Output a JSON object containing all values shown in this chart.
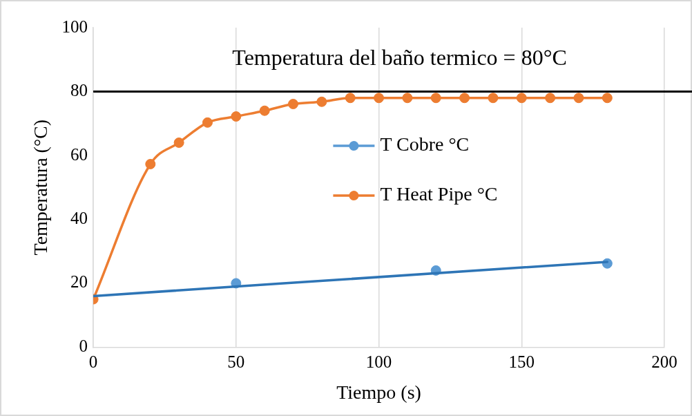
{
  "chart_data": {
    "type": "scatter",
    "xlabel": "Tiempo (s)",
    "ylabel": "Temperatura (°C)",
    "xlim": [
      0,
      200
    ],
    "xticks": [
      0,
      50,
      100,
      150,
      200
    ],
    "ylim": [
      0,
      100
    ],
    "yticks": [
      0,
      20,
      40,
      60,
      80,
      100
    ],
    "grid": "x",
    "legend": "center",
    "marker": "circle",
    "ref_lines": [
      {
        "axis": "y",
        "value": 80,
        "label": "Temperatura del baño termico = 80°C",
        "color": "#000000"
      }
    ],
    "series": [
      {
        "name": "T Cobre °C",
        "color": "#5b9bd5",
        "x": [
          50,
          120,
          180
        ],
        "values": [
          20,
          24,
          26.2
        ]
      },
      {
        "name": "T Heat Pipe °C",
        "type": "line",
        "color": "#ed7d31",
        "x": [
          0,
          20,
          30,
          40,
          50,
          60,
          70,
          80,
          90,
          100,
          110,
          120,
          130,
          140,
          150,
          160,
          170,
          180
        ],
        "values": [
          15,
          57.3,
          64,
          70.3,
          72.2,
          74,
          76.1,
          76.8,
          78,
          78,
          78,
          78,
          78,
          78,
          78,
          78,
          78,
          78
        ]
      },
      {
        "type": "line",
        "marker": "none",
        "color": "#2e75b6",
        "x": [
          0,
          180
        ],
        "values": [
          16,
          26.7
        ]
      }
    ]
  }
}
